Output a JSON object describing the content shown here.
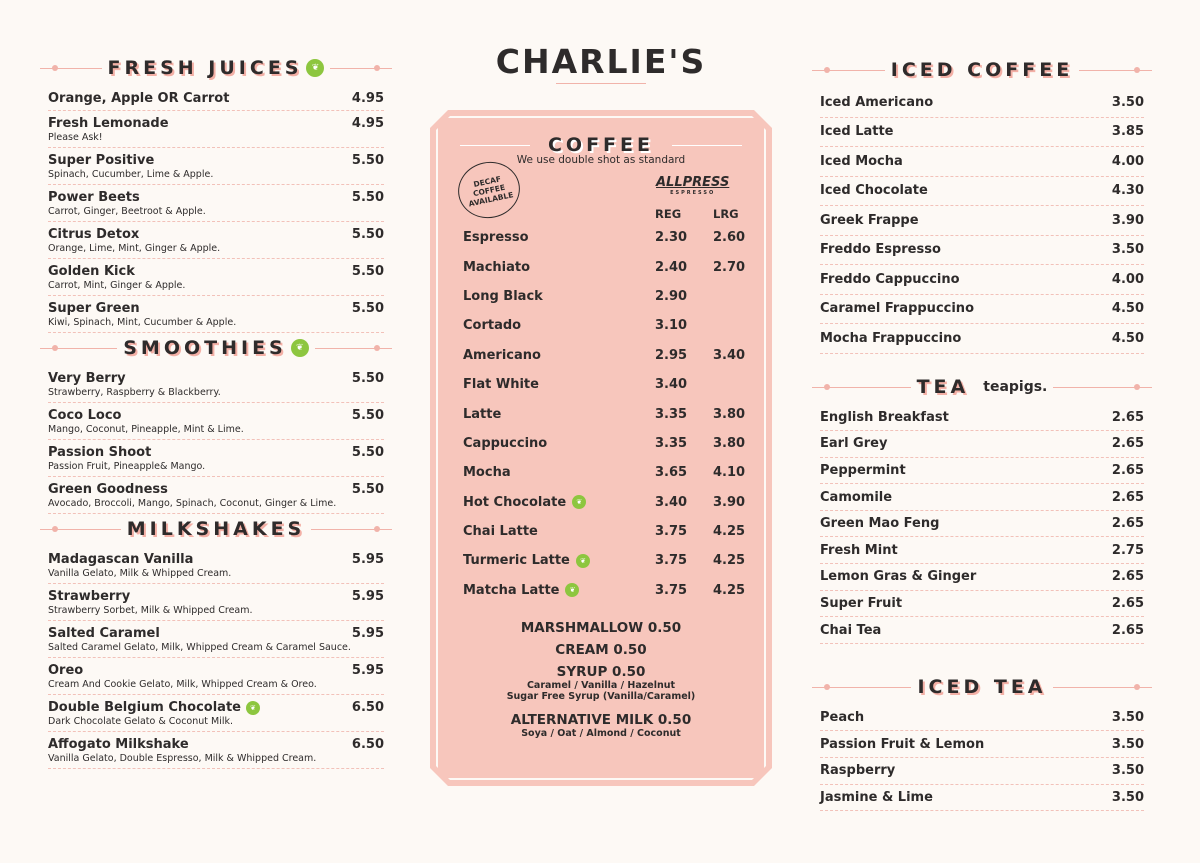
{
  "title": "CHARLIE'S",
  "left": [
    {
      "id": "juices",
      "heading": "FRESH JUICES",
      "vegan": true,
      "items": [
        {
          "name": "Orange, Apple OR Carrot",
          "price": "4.95"
        },
        {
          "name": "Fresh Lemonade",
          "desc": "Please Ask!",
          "price": "4.95"
        },
        {
          "name": "Super Positive",
          "desc": "Spinach, Cucumber, Lime & Apple.",
          "price": "5.50"
        },
        {
          "name": "Power Beets",
          "desc": "Carrot, Ginger, Beetroot & Apple.",
          "price": "5.50"
        },
        {
          "name": "Citrus  Detox",
          "desc": "Orange, Lime, Mint, Ginger & Apple.",
          "price": "5.50"
        },
        {
          "name": "Golden Kick",
          "desc": "Carrot, Mint, Ginger & Apple.",
          "price": "5.50"
        },
        {
          "name": "Super Green",
          "desc": "Kiwi, Spinach, Mint, Cucumber & Apple.",
          "price": "5.50"
        }
      ]
    },
    {
      "id": "smoothies",
      "heading": "SMOOTHIES",
      "vegan": true,
      "items": [
        {
          "name": "Very Berry",
          "desc": "Strawberry, Raspberry & Blackberry.",
          "price": "5.50"
        },
        {
          "name": "Coco Loco",
          "desc": "Mango, Coconut, Pineapple, Mint & Lime.",
          "price": "5.50"
        },
        {
          "name": "Passion Shoot",
          "desc": "Passion Fruit, Pineapple& Mango.",
          "price": "5.50"
        },
        {
          "name": "Green Goodness",
          "desc": "Avocado, Broccoli, Mango, Spinach, Coconut, Ginger & Lime.",
          "price": "5.50"
        }
      ]
    },
    {
      "id": "milkshakes",
      "heading": "MILKSHAKES",
      "vegan": false,
      "items": [
        {
          "name": "Madagascan Vanilla",
          "desc": "Vanilla Gelato, Milk & Whipped Cream.",
          "price": "5.95"
        },
        {
          "name": "Strawberry",
          "desc": "Strawberry Sorbet, Milk & Whipped Cream.",
          "price": "5.95"
        },
        {
          "name": "Salted Caramel",
          "desc": "Salted Caramel Gelato, Milk, Whipped Cream & Caramel Sauce.",
          "price": "5.95"
        },
        {
          "name": "Oreo",
          "desc": "Cream And Cookie Gelato, Milk, Whipped Cream & Oreo.",
          "price": "5.95"
        },
        {
          "name": "Double Belgium Chocolate",
          "vegan": true,
          "desc": "Dark Chocolate Gelato & Coconut Milk.",
          "price": "6.50"
        },
        {
          "name": "Affogato Milkshake",
          "desc": "Vanilla Gelato, Double Espresso, Milk & Whipped Cream.",
          "price": "6.50"
        }
      ]
    }
  ],
  "coffee": {
    "heading": "COFFEE",
    "subtitle": "We use double shot as standard",
    "badge": "DECAF COFFEE AVAILABLE",
    "brand": "ALLPRESS",
    "brand_sub": "ESPRESSO",
    "col_reg": "REG",
    "col_lrg": "LRG",
    "items": [
      {
        "name": "Espresso",
        "reg": "2.30",
        "lrg": "2.60"
      },
      {
        "name": "Machiato",
        "reg": "2.40",
        "lrg": "2.70"
      },
      {
        "name": "Long Black",
        "reg": "2.90",
        "lrg": ""
      },
      {
        "name": "Cortado",
        "reg": "3.10",
        "lrg": ""
      },
      {
        "name": "Americano",
        "reg": "2.95",
        "lrg": "3.40"
      },
      {
        "name": "Flat White",
        "reg": "3.40",
        "lrg": ""
      },
      {
        "name": "Latte",
        "reg": "3.35",
        "lrg": "3.80"
      },
      {
        "name": "Cappuccino",
        "reg": "3.35",
        "lrg": "3.80"
      },
      {
        "name": "Mocha",
        "reg": "3.65",
        "lrg": "4.10"
      },
      {
        "name": "Hot Chocolate",
        "vegan": true,
        "reg": "3.40",
        "lrg": "3.90"
      },
      {
        "name": "Chai Latte",
        "reg": "3.75",
        "lrg": "4.25"
      },
      {
        "name": "Turmeric Latte",
        "vegan": true,
        "reg": "3.75",
        "lrg": "4.25"
      },
      {
        "name": "Matcha Latte",
        "vegan": true,
        "reg": "3.75",
        "lrg": "4.25"
      }
    ],
    "extras": [
      {
        "label": "MARSHMALLOW 0.50"
      },
      {
        "label": "CREAM  0.50"
      },
      {
        "label": "SYRUP 0.50",
        "sub": "Caramel / Vanilla / Hazelnut",
        "sub2": "Sugar Free Syrup (Vanilla/Caramel)"
      },
      {
        "label": "ALTERNATIVE MILK  0.50",
        "sub": "Soya / Oat / Almond / Coconut"
      }
    ]
  },
  "right": [
    {
      "id": "iced-coffee",
      "heading": "ICED COFFEE",
      "items": [
        {
          "name": "Iced Americano",
          "price": "3.50"
        },
        {
          "name": "Iced Latte",
          "price": "3.85"
        },
        {
          "name": "Iced Mocha",
          "price": "4.00"
        },
        {
          "name": "Iced Chocolate",
          "price": "4.30"
        },
        {
          "name": "Greek Frappe",
          "price": "3.90"
        },
        {
          "name": "Freddo Espresso",
          "price": "3.50"
        },
        {
          "name": "Freddo Cappuccino",
          "price": "4.00"
        },
        {
          "name": "Caramel Frappuccino",
          "price": "4.50"
        },
        {
          "name": "Mocha Frappuccino",
          "price": "4.50"
        }
      ]
    },
    {
      "id": "tea",
      "heading": "TEA",
      "brand": "teapigs.",
      "items": [
        {
          "name": "English Breakfast",
          "price": "2.65"
        },
        {
          "name": "Earl Grey",
          "price": "2.65"
        },
        {
          "name": "Peppermint",
          "price": "2.65"
        },
        {
          "name": "Camomile",
          "price": "2.65"
        },
        {
          "name": "Green Mao Feng",
          "price": "2.65"
        },
        {
          "name": "Fresh Mint",
          "price": "2.75"
        },
        {
          "name": "Lemon Gras & Ginger",
          "price": "2.65"
        },
        {
          "name": "Super Fruit",
          "price": "2.65"
        },
        {
          "name": "Chai Tea",
          "price": "2.65"
        }
      ]
    },
    {
      "id": "iced-tea",
      "heading": "ICED TEA",
      "items": [
        {
          "name": "Peach",
          "price": "3.50"
        },
        {
          "name": "Passion Fruit & Lemon",
          "price": "3.50"
        },
        {
          "name": "Raspberry",
          "price": "3.50"
        },
        {
          "name": "Jasmine & Lime",
          "price": "3.50"
        }
      ]
    }
  ],
  "colors": {
    "accent": "#f7c6bc",
    "vegan": "#8dc63f",
    "text": "#2e2b2b"
  }
}
